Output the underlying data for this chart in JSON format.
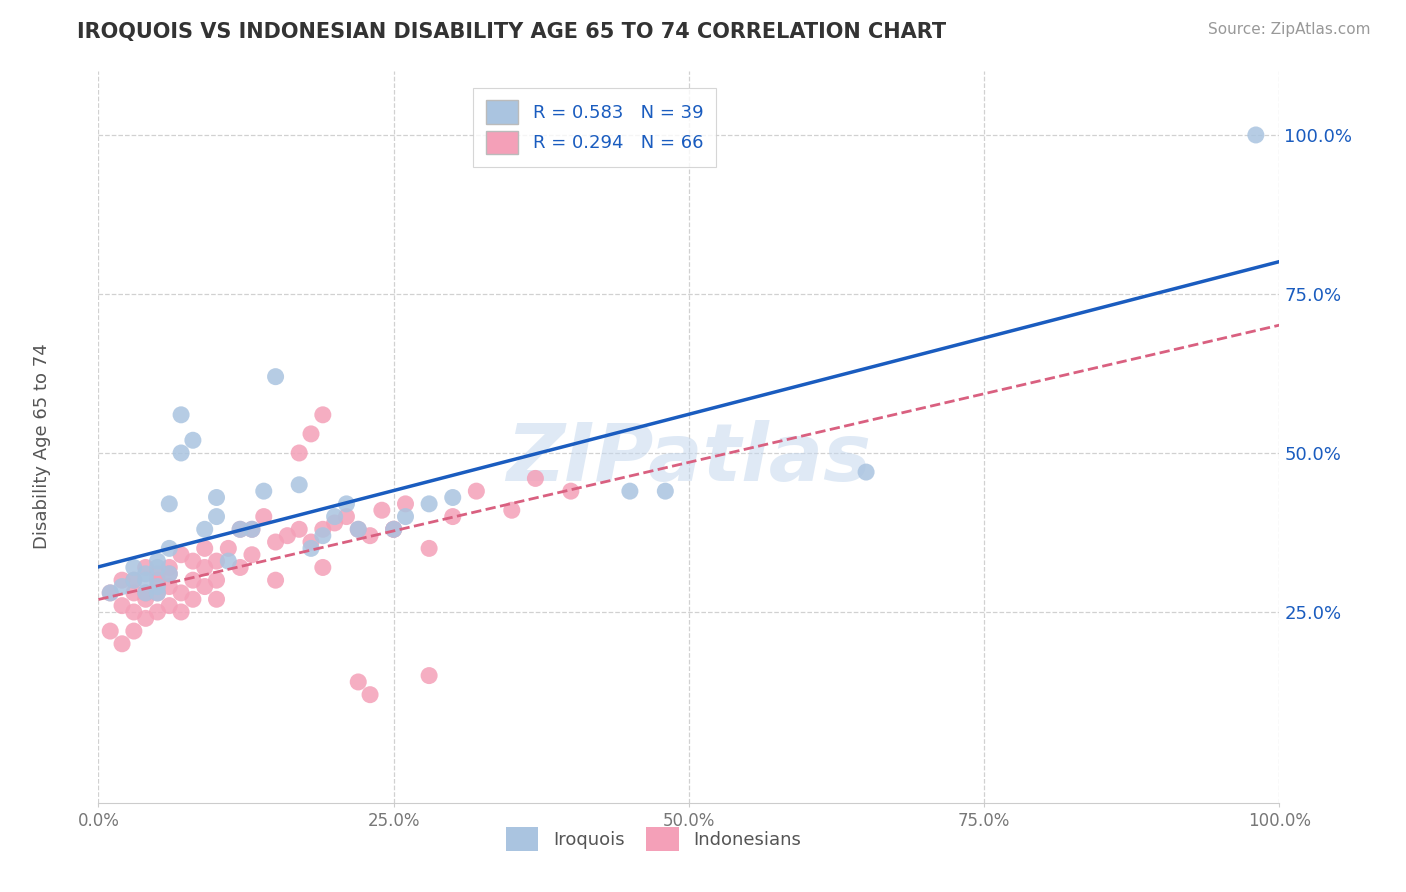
{
  "title": "IROQUOIS VS INDONESIAN DISABILITY AGE 65 TO 74 CORRELATION CHART",
  "source_text": "Source: ZipAtlas.com",
  "ylabel": "Disability Age 65 to 74",
  "xlim": [
    0.0,
    1.0
  ],
  "ylim": [
    -0.05,
    1.1
  ],
  "xticks": [
    0.0,
    0.25,
    0.5,
    0.75,
    1.0
  ],
  "xticklabels": [
    "0.0%",
    "25.0%",
    "50.0%",
    "75.0%",
    "100.0%"
  ],
  "yticks": [
    0.25,
    0.5,
    0.75,
    1.0
  ],
  "yticklabels": [
    "25.0%",
    "50.0%",
    "75.0%",
    "100.0%"
  ],
  "legend_R1": "R = 0.583",
  "legend_N1": "N = 39",
  "legend_R2": "R = 0.294",
  "legend_N2": "N = 66",
  "iroquois_color": "#aac4e0",
  "indonesian_color": "#f4a0b8",
  "iroquois_line_color": "#1a5cbf",
  "indonesian_line_color": "#d96080",
  "watermark": "ZIPatlas",
  "background_color": "#ffffff",
  "grid_color": "#cccccc",
  "iroquois_x": [
    0.01,
    0.02,
    0.03,
    0.03,
    0.04,
    0.04,
    0.04,
    0.05,
    0.05,
    0.05,
    0.05,
    0.06,
    0.06,
    0.06,
    0.07,
    0.07,
    0.08,
    0.09,
    0.1,
    0.1,
    0.11,
    0.12,
    0.13,
    0.14,
    0.15,
    0.17,
    0.18,
    0.19,
    0.2,
    0.21,
    0.22,
    0.25,
    0.26,
    0.28,
    0.3,
    0.45,
    0.48,
    0.65,
    0.98
  ],
  "iroquois_y": [
    0.28,
    0.29,
    0.3,
    0.32,
    0.31,
    0.28,
    0.3,
    0.29,
    0.33,
    0.28,
    0.32,
    0.31,
    0.35,
    0.42,
    0.56,
    0.5,
    0.52,
    0.38,
    0.4,
    0.43,
    0.33,
    0.38,
    0.38,
    0.44,
    0.62,
    0.45,
    0.35,
    0.37,
    0.4,
    0.42,
    0.38,
    0.38,
    0.4,
    0.42,
    0.43,
    0.44,
    0.44,
    0.47,
    1.0
  ],
  "indonesian_x": [
    0.01,
    0.01,
    0.02,
    0.02,
    0.02,
    0.03,
    0.03,
    0.03,
    0.03,
    0.04,
    0.04,
    0.04,
    0.04,
    0.05,
    0.05,
    0.05,
    0.05,
    0.06,
    0.06,
    0.06,
    0.06,
    0.07,
    0.07,
    0.07,
    0.08,
    0.08,
    0.08,
    0.09,
    0.09,
    0.09,
    0.1,
    0.1,
    0.1,
    0.11,
    0.12,
    0.12,
    0.13,
    0.13,
    0.14,
    0.15,
    0.15,
    0.16,
    0.17,
    0.18,
    0.19,
    0.19,
    0.2,
    0.21,
    0.22,
    0.23,
    0.24,
    0.25,
    0.26,
    0.28,
    0.3,
    0.32,
    0.35,
    0.37,
    0.4,
    0.25,
    0.17,
    0.18,
    0.19,
    0.22,
    0.23,
    0.28
  ],
  "indonesian_y": [
    0.28,
    0.22,
    0.26,
    0.2,
    0.3,
    0.28,
    0.25,
    0.22,
    0.3,
    0.28,
    0.32,
    0.27,
    0.24,
    0.31,
    0.28,
    0.25,
    0.3,
    0.32,
    0.29,
    0.31,
    0.26,
    0.34,
    0.28,
    0.25,
    0.33,
    0.3,
    0.27,
    0.32,
    0.35,
    0.29,
    0.33,
    0.3,
    0.27,
    0.35,
    0.32,
    0.38,
    0.34,
    0.38,
    0.4,
    0.36,
    0.3,
    0.37,
    0.38,
    0.36,
    0.38,
    0.32,
    0.39,
    0.4,
    0.38,
    0.37,
    0.41,
    0.38,
    0.42,
    0.35,
    0.4,
    0.44,
    0.41,
    0.46,
    0.44,
    0.38,
    0.5,
    0.53,
    0.56,
    0.14,
    0.12,
    0.15
  ]
}
